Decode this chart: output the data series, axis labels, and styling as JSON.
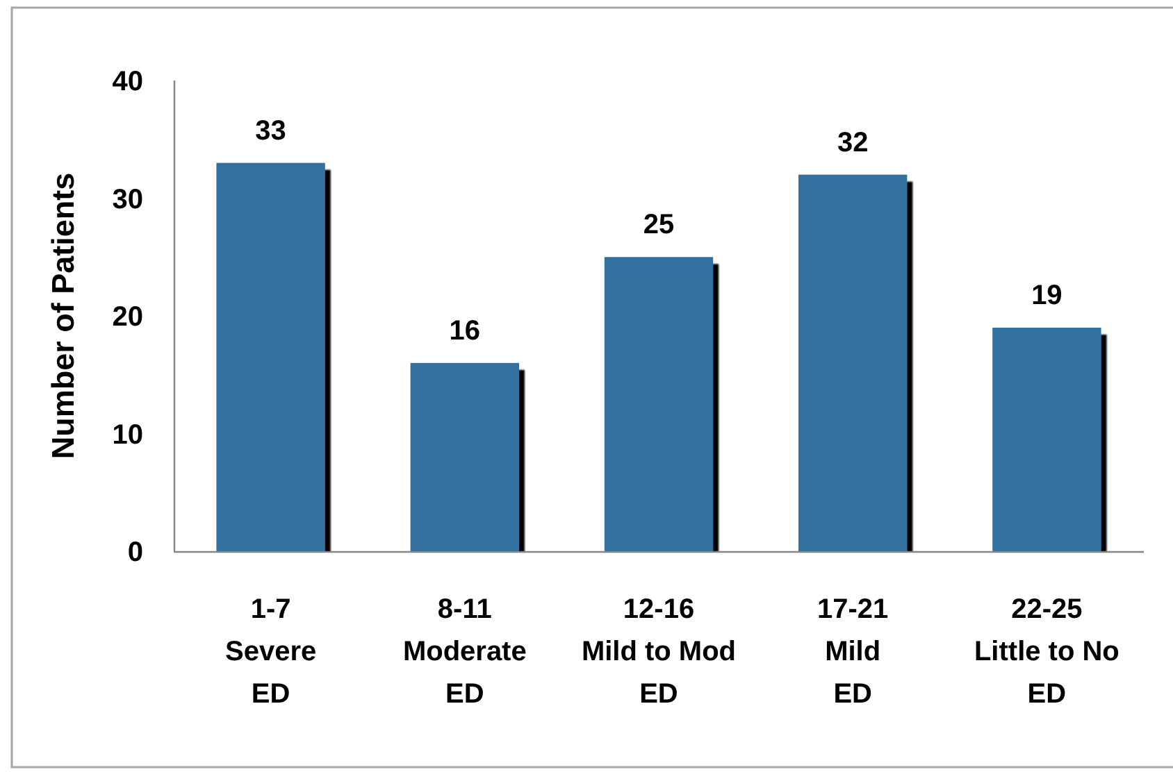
{
  "chart_data": {
    "type": "bar",
    "categories": [
      "1-7\nSevere\nED",
      "8-11\nModerate\nED",
      "12-16\nMild to Mod\nED",
      "17-21\nMild\nED",
      "22-25\nLittle to No\nED"
    ],
    "values": [
      33,
      16,
      25,
      32,
      19
    ],
    "color": "#3270a0",
    "ylabel": "Number of Patients",
    "ylim": [
      0,
      40
    ],
    "yticks": [
      0,
      10,
      20,
      30,
      40
    ],
    "grid": false,
    "data_labels": true
  }
}
